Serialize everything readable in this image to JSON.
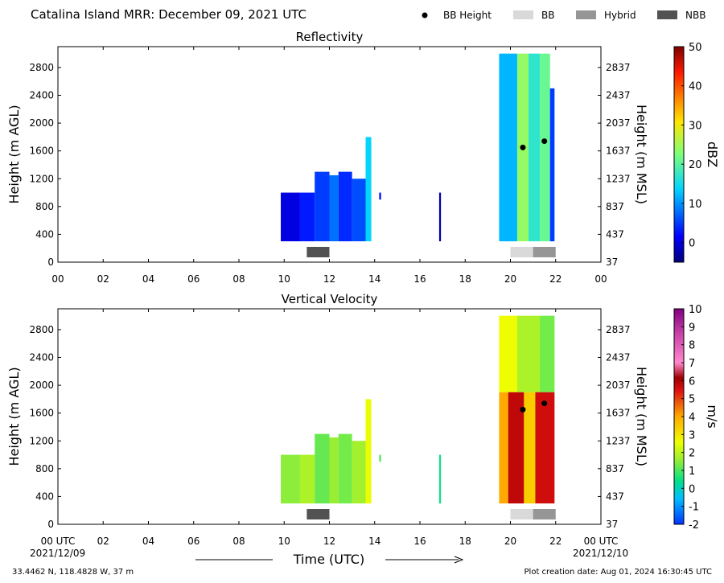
{
  "header": {
    "title": "Catalina Island MRR:  December 09, 2021 UTC",
    "legend": [
      {
        "label": "BB Height",
        "kind": "dot",
        "color": "#000000"
      },
      {
        "label": "BB",
        "kind": "patch",
        "color": "#d9d9d9"
      },
      {
        "label": "Hybrid",
        "kind": "patch",
        "color": "#969696"
      },
      {
        "label": "NBB",
        "kind": "patch",
        "color": "#525252"
      }
    ]
  },
  "footer": {
    "location": "33.4462 N, 118.4828 W, 37 m",
    "creation": "Plot creation date: Aug 01, 2024 16:30:45 UTC",
    "xlabel": "Time (UTC)",
    "start_date": "2021/12/09",
    "end_date": "2021/12/10"
  },
  "chart_data": [
    {
      "type": "heatmap",
      "title": "Reflectivity",
      "ylabel": "Height (m AGL)",
      "ylabel_right": "Height (m MSL)",
      "xlim": [
        0,
        24
      ],
      "ylim": [
        0,
        3100
      ],
      "xticks": [
        "00",
        "02",
        "04",
        "06",
        "08",
        "10",
        "12",
        "14",
        "16",
        "18",
        "20",
        "22",
        "00"
      ],
      "yticks": [
        0,
        400,
        800,
        1200,
        1600,
        2000,
        2400,
        2800
      ],
      "yticks_right": [
        "37",
        "437",
        "837",
        "1237",
        "1637",
        "2037",
        "2437",
        "2837"
      ],
      "colorbar": {
        "label": "dBZ",
        "min": -5,
        "max": 50,
        "ticks": [
          0,
          10,
          20,
          30,
          40,
          50
        ],
        "colormap": "jet"
      },
      "echoes": [
        {
          "t0": 9.85,
          "t1": 10.7,
          "h0": 300,
          "h1": 1000,
          "value": 0
        },
        {
          "t0": 10.7,
          "t1": 11.35,
          "h0": 300,
          "h1": 1000,
          "value": 3
        },
        {
          "t0": 11.35,
          "t1": 12.0,
          "h0": 300,
          "h1": 1300,
          "value": 5
        },
        {
          "t0": 12.0,
          "t1": 12.4,
          "h0": 300,
          "h1": 1250,
          "value": 8
        },
        {
          "t0": 12.4,
          "t1": 13.0,
          "h0": 300,
          "h1": 1300,
          "value": 4
        },
        {
          "t0": 13.0,
          "t1": 13.6,
          "h0": 300,
          "h1": 1200,
          "value": 6
        },
        {
          "t0": 13.6,
          "t1": 13.85,
          "h0": 300,
          "h1": 1800,
          "value": 14
        },
        {
          "t0": 14.2,
          "t1": 14.28,
          "h0": 900,
          "h1": 1000,
          "value": 2
        },
        {
          "t0": 16.85,
          "t1": 16.93,
          "h0": 300,
          "h1": 1000,
          "value": -3
        },
        {
          "t0": 19.5,
          "t1": 20.3,
          "h0": 300,
          "h1": 3000,
          "value": 12
        },
        {
          "t0": 20.3,
          "t1": 20.8,
          "h0": 300,
          "h1": 3000,
          "value": 24
        },
        {
          "t0": 20.8,
          "t1": 21.3,
          "h0": 300,
          "h1": 3000,
          "value": 17
        },
        {
          "t0": 21.3,
          "t1": 21.75,
          "h0": 300,
          "h1": 3000,
          "value": 21
        },
        {
          "t0": 21.75,
          "t1": 21.95,
          "h0": 300,
          "h1": 2500,
          "value": 5
        }
      ],
      "bb_height": [
        {
          "t": 20.55,
          "h": 1650
        },
        {
          "t": 21.5,
          "h": 1740
        }
      ],
      "bb_class": [
        {
          "t0": 11.0,
          "t1": 12.0,
          "class": "NBB"
        },
        {
          "t0": 20.0,
          "t1": 21.0,
          "class": "BB"
        },
        {
          "t0": 21.0,
          "t1": 22.0,
          "class": "Hybrid"
        }
      ]
    },
    {
      "type": "heatmap",
      "title": "Vertical Velocity",
      "ylabel": "Height (m AGL)",
      "ylabel_right": "Height (m MSL)",
      "xlim": [
        0,
        24
      ],
      "ylim": [
        0,
        3100
      ],
      "xticks": [
        "00 UTC",
        "02",
        "04",
        "06",
        "08",
        "10",
        "12",
        "14",
        "16",
        "18",
        "20",
        "22",
        "00 UTC"
      ],
      "yticks": [
        0,
        400,
        800,
        1200,
        1600,
        2000,
        2400,
        2800
      ],
      "yticks_right": [
        "37",
        "437",
        "837",
        "1237",
        "1637",
        "2037",
        "2437",
        "2837"
      ],
      "colorbar": {
        "label": "m/s",
        "min": -2,
        "max": 10,
        "ticks": [
          -2,
          -1,
          0,
          1,
          2,
          3,
          4,
          5,
          6,
          7,
          8,
          9,
          10
        ],
        "colormap": "velocity"
      },
      "echoes": [
        {
          "t0": 9.85,
          "t1": 10.7,
          "h0": 300,
          "h1": 1000,
          "value": 1.5
        },
        {
          "t0": 10.7,
          "t1": 11.35,
          "h0": 300,
          "h1": 1000,
          "value": 1.8
        },
        {
          "t0": 11.35,
          "t1": 12.0,
          "h0": 300,
          "h1": 1300,
          "value": 1.2
        },
        {
          "t0": 12.0,
          "t1": 12.4,
          "h0": 300,
          "h1": 1250,
          "value": 1.6
        },
        {
          "t0": 12.4,
          "t1": 13.0,
          "h0": 300,
          "h1": 1300,
          "value": 1.3
        },
        {
          "t0": 13.0,
          "t1": 13.6,
          "h0": 300,
          "h1": 1200,
          "value": 1.7
        },
        {
          "t0": 13.6,
          "t1": 13.85,
          "h0": 300,
          "h1": 1800,
          "value": 2.5
        },
        {
          "t0": 14.2,
          "t1": 14.28,
          "h0": 900,
          "h1": 1000,
          "value": 1.0
        },
        {
          "t0": 16.85,
          "t1": 16.93,
          "h0": 300,
          "h1": 1000,
          "value": 0.5
        },
        {
          "t0": 19.5,
          "t1": 20.3,
          "h0": 1900,
          "h1": 3000,
          "value": 2.6
        },
        {
          "t0": 20.3,
          "t1": 21.3,
          "h0": 1900,
          "h1": 3000,
          "value": 1.8
        },
        {
          "t0": 21.3,
          "t1": 21.95,
          "h0": 1900,
          "h1": 3000,
          "value": 1.3
        },
        {
          "t0": 19.5,
          "t1": 19.9,
          "h0": 300,
          "h1": 1900,
          "value": 4.0
        },
        {
          "t0": 19.9,
          "t1": 20.6,
          "h0": 300,
          "h1": 1900,
          "value": 5.8
        },
        {
          "t0": 20.6,
          "t1": 21.1,
          "h0": 300,
          "h1": 1900,
          "value": 3.4
        },
        {
          "t0": 21.1,
          "t1": 21.95,
          "h0": 300,
          "h1": 1900,
          "value": 5.6
        }
      ],
      "bb_height": [
        {
          "t": 20.55,
          "h": 1650
        },
        {
          "t": 21.5,
          "h": 1740
        }
      ],
      "bb_class": [
        {
          "t0": 11.0,
          "t1": 12.0,
          "class": "NBB"
        },
        {
          "t0": 20.0,
          "t1": 21.0,
          "class": "BB"
        },
        {
          "t0": 21.0,
          "t1": 22.0,
          "class": "Hybrid"
        }
      ]
    }
  ]
}
